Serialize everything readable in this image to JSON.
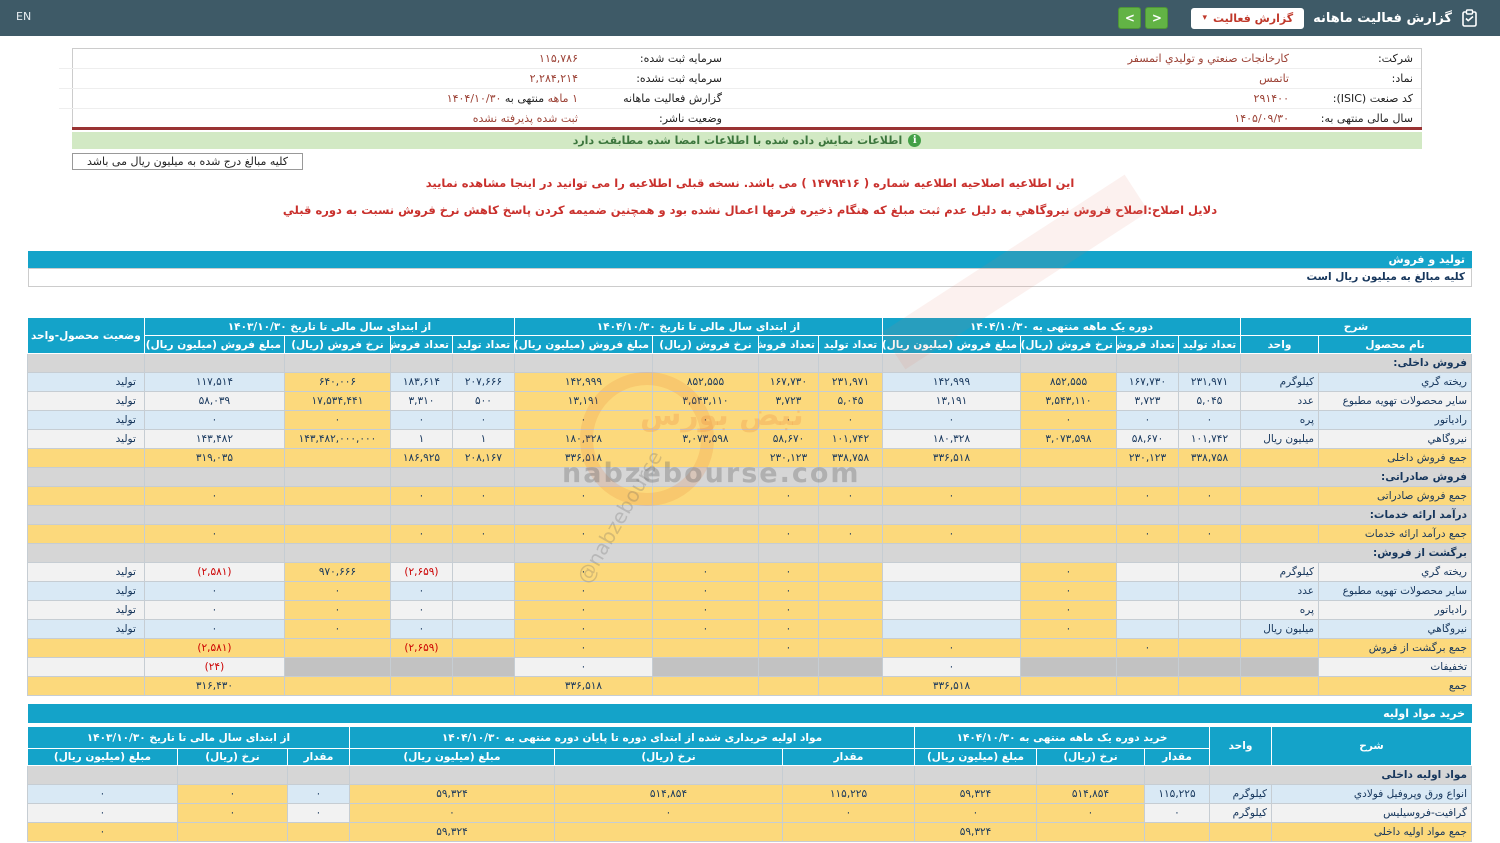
{
  "navbar": {
    "title": "گزارش فعالیت ماهانه",
    "dropdown_label": "گزارش فعالیت",
    "next_label": ">",
    "prev_label": "<",
    "lang": "EN",
    "bar_color": "#3e5a67",
    "button_green": "#62b345"
  },
  "info": {
    "rows": [
      [
        {
          "label": "شرکت:",
          "parts": [
            {
              "t": "کارخانجات صنعتي و توليدي اتمسفر",
              "c": "v"
            }
          ]
        },
        {
          "label": "سرمایه ثبت شده:",
          "parts": [
            {
              "t": "۱۱۵,۷۸۶",
              "c": "v"
            }
          ]
        }
      ],
      [
        {
          "label": "نماد:",
          "parts": [
            {
              "t": "تاتمس",
              "c": "v"
            }
          ]
        },
        {
          "label": "سرمایه ثبت نشده:",
          "parts": [
            {
              "t": "۲,۲۸۴,۲۱۴",
              "c": "v"
            }
          ]
        }
      ],
      [
        {
          "label": "کد صنعت (ISIC):",
          "parts": [
            {
              "t": "۲۹۱۴۰۰",
              "c": "v"
            }
          ]
        },
        {
          "label": "گزارش فعالیت ماهانه",
          "parts": [
            {
              "t": " ۱ ماهه",
              "c": "v"
            },
            {
              "t": "منتهی به",
              "c": "l"
            },
            {
              "t": "۱۴۰۴/۱۰/۳۰",
              "c": "v"
            }
          ]
        }
      ],
      [
        {
          "label": "سال مالی منتهی به:",
          "parts": [
            {
              "t": "۱۴۰۵/۰۹/۳۰",
              "c": "v"
            }
          ]
        },
        {
          "label": "وضعیت ناشر:",
          "parts": [
            {
              "t": "ثبت شده پذیرفته نشده",
              "c": "v"
            }
          ]
        }
      ]
    ]
  },
  "notice": "اطلاعات نمایش داده شده با اطلاعات امضا شده مطابقت دارد",
  "badge": "کلیه مبالغ درج شده به میلیون ریال می باشد",
  "amendment_line1": "این اطلاعیه اصلاحیه اطلاعیه شماره ( ۱۴۷۹۴۱۶ ) می باشد. نسخه قبلی اطلاعیه را می توانید در اینجا مشاهده نمایید",
  "amendment_line2": "دلایل اصلاح:اصلاح فروش نيروگاهي به دليل عدم ثبت مبلغ که هنگام ذخيره فرمها اعمال نشده بود و همچنين ضميمه کردن پاسخ کاهش نرخ فروش نسبت به دوره قبلي",
  "section1": {
    "title": "تولید و فروش",
    "subtitle": "کلیه مبالغ به میلیون ریال است"
  },
  "section2": {
    "title": "خرید مواد اولیه"
  },
  "watermark": {
    "main": "nabzebourse.com",
    "handle": "@nabzebourse",
    "fa": "نبض بورس"
  },
  "colors": {
    "teal": "#14a3c9",
    "highlight": "#fcd97c",
    "row_blue": "#d9e9f5",
    "negative": "#cc0000"
  },
  "tables": {
    "t1": {
      "has_status": true,
      "group_headers": [
        {
          "label": "شرح",
          "span": 2
        },
        {
          "label": "دوره یک ماهه منتهی به ۱۴۰۴/۱۰/۳۰",
          "span": 4
        },
        {
          "label": "از ابتدای سال مالی تا تاریخ ۱۴۰۴/۱۰/۳۰",
          "span": 4
        },
        {
          "label": "از ابتدای سال مالی تا تاریخ ۱۴۰۳/۱۰/۳۰",
          "span": 4
        },
        {
          "label": "وضعیت محصول-واحد",
          "span": 1,
          "rowspan": 2
        }
      ],
      "sub_headers": [
        "نام محصول",
        "واحد",
        "تعداد تولید",
        "تعداد فروش",
        "نرخ فروش (ریال)",
        "مبلغ فروش (میلیون ریال)",
        "تعداد تولید",
        "تعداد فروش",
        "نرخ فروش (ریال)",
        "مبلغ فروش (میلیون ریال)",
        "تعداد تولید",
        "تعداد فروش",
        "نرخ فروش (ریال)",
        "مبلغ فروش (میلیون ریال)"
      ],
      "rows": [
        {
          "type": "section",
          "label": "فروش داخلی:"
        },
        {
          "type": "data",
          "bg": "blue",
          "label": "ریخته گري",
          "unit": "کیلوگرم",
          "status": "تولید",
          "cells": [
            "۲۳۱,۹۷۱",
            "۱۶۷,۷۳۰",
            {
              "v": "۸۵۲,۵۵۵",
              "hl": true
            },
            "۱۴۲,۹۹۹",
            {
              "v": "۲۳۱,۹۷۱",
              "hl": true
            },
            {
              "v": "۱۶۷,۷۳۰",
              "hl": true
            },
            {
              "v": "۸۵۲,۵۵۵",
              "hl": true
            },
            {
              "v": "۱۴۲,۹۹۹",
              "hl": true
            },
            "۲۰۷,۶۶۶",
            "۱۸۳,۶۱۴",
            {
              "v": "۶۴۰,۰۰۶",
              "hl": true
            },
            "۱۱۷,۵۱۴"
          ]
        },
        {
          "type": "data",
          "bg": "light",
          "label": "سایر محصولات تهویه مطبوع",
          "unit": "عدد",
          "status": "تولید",
          "cells": [
            "۵,۰۴۵",
            "۳,۷۲۳",
            {
              "v": "۳,۵۴۳,۱۱۰",
              "hl": true
            },
            "۱۳,۱۹۱",
            {
              "v": "۵,۰۴۵",
              "hl": true
            },
            {
              "v": "۳,۷۲۳",
              "hl": true
            },
            {
              "v": "۳,۵۴۳,۱۱۰",
              "hl": true
            },
            {
              "v": "۱۳,۱۹۱",
              "hl": true
            },
            "۵۰۰",
            "۳,۳۱۰",
            {
              "v": "۱۷,۵۳۴,۴۴۱",
              "hl": true
            },
            "۵۸,۰۳۹"
          ]
        },
        {
          "type": "data",
          "bg": "blue",
          "label": "رادیاتور",
          "unit": "پره",
          "status": "تولید",
          "cells": [
            "۰",
            "۰",
            {
              "v": "۰",
              "hl": true
            },
            "۰",
            {
              "v": "۰",
              "hl": true
            },
            {
              "v": "۰",
              "hl": true
            },
            {
              "v": "۰",
              "hl": true
            },
            {
              "v": "۰",
              "hl": true
            },
            "۰",
            "۰",
            {
              "v": "۰",
              "hl": true
            },
            "۰"
          ]
        },
        {
          "type": "data",
          "bg": "light",
          "label": "نيروگاهي",
          "unit": "میلیون ریال",
          "status": "تولید",
          "cells": [
            "۱۰۱,۷۴۲",
            "۵۸,۶۷۰",
            {
              "v": "۳,۰۷۳,۵۹۸",
              "hl": true
            },
            "۱۸۰,۳۲۸",
            {
              "v": "۱۰۱,۷۴۲",
              "hl": true
            },
            {
              "v": "۵۸,۶۷۰",
              "hl": true
            },
            {
              "v": "۳,۰۷۳,۵۹۸",
              "hl": true
            },
            {
              "v": "۱۸۰,۳۲۸",
              "hl": true
            },
            "۱",
            "۱",
            {
              "v": "۱۴۳,۴۸۲,۰۰۰,۰۰۰",
              "hl": true
            },
            "۱۴۳,۴۸۲"
          ]
        },
        {
          "type": "data",
          "bg": "yellow",
          "label": "جمع فروش داخلی",
          "unit": "",
          "status": "",
          "cells": [
            "۳۳۸,۷۵۸",
            "۲۳۰,۱۲۳",
            "",
            "۳۳۶,۵۱۸",
            "۳۳۸,۷۵۸",
            "۲۳۰,۱۲۳",
            "",
            "۳۳۶,۵۱۸",
            "۲۰۸,۱۶۷",
            "۱۸۶,۹۲۵",
            "",
            "۳۱۹,۰۳۵"
          ]
        },
        {
          "type": "section",
          "label": "فروش صادراتی:"
        },
        {
          "type": "data",
          "bg": "yellow",
          "label": "جمع فروش صادراتی",
          "unit": "",
          "status": "",
          "cells": [
            "۰",
            "۰",
            "",
            "۰",
            "۰",
            "۰",
            "",
            "۰",
            "۰",
            "۰",
            "",
            "۰"
          ]
        },
        {
          "type": "section",
          "label": "درآمد ارائه خدمات:"
        },
        {
          "type": "data",
          "bg": "yellow",
          "label": "جمع درآمد ارائه خدمات",
          "unit": "",
          "status": "",
          "cells": [
            "۰",
            "۰",
            "",
            "۰",
            "۰",
            "۰",
            "",
            "۰",
            "۰",
            "۰",
            "",
            "۰"
          ]
        },
        {
          "type": "section",
          "label": "برگشت از فروش:"
        },
        {
          "type": "data",
          "bg": "light",
          "label": "ریخته گري",
          "unit": "کیلوگرم",
          "status": "تولید",
          "cells": [
            "",
            "",
            {
              "v": "۰",
              "hl": true
            },
            "",
            {
              "hl": true
            },
            {
              "v": "۰",
              "hl": true
            },
            {
              "v": "۰",
              "hl": true
            },
            {
              "v": "۰",
              "hl": true
            },
            "",
            {
              "v": "(۲,۶۵۹)",
              "red": true
            },
            {
              "v": "۹۷۰,۶۶۶",
              "hl": true
            },
            {
              "v": "(۲,۵۸۱)",
              "red": true
            }
          ]
        },
        {
          "type": "data",
          "bg": "blue",
          "label": "سایر محصولات تهویه مطبوع",
          "unit": "عدد",
          "status": "تولید",
          "cells": [
            "",
            "",
            {
              "v": "۰",
              "hl": true
            },
            "",
            {
              "hl": true
            },
            {
              "v": "۰",
              "hl": true
            },
            {
              "v": "۰",
              "hl": true
            },
            {
              "v": "۰",
              "hl": true
            },
            "",
            "۰",
            {
              "v": "۰",
              "hl": true
            },
            "۰"
          ]
        },
        {
          "type": "data",
          "bg": "light",
          "label": "رادیاتور",
          "unit": "پره",
          "status": "تولید",
          "cells": [
            "",
            "",
            {
              "v": "۰",
              "hl": true
            },
            "",
            {
              "hl": true
            },
            {
              "v": "۰",
              "hl": true
            },
            {
              "v": "۰",
              "hl": true
            },
            {
              "v": "۰",
              "hl": true
            },
            "",
            "۰",
            {
              "v": "۰",
              "hl": true
            },
            "۰"
          ]
        },
        {
          "type": "data",
          "bg": "blue",
          "label": "نيروگاهي",
          "unit": "میلیون ریال",
          "status": "تولید",
          "cells": [
            "",
            "",
            {
              "v": "۰",
              "hl": true
            },
            "",
            {
              "hl": true
            },
            {
              "v": "۰",
              "hl": true
            },
            {
              "v": "۰",
              "hl": true
            },
            {
              "v": "۰",
              "hl": true
            },
            "",
            "۰",
            {
              "v": "۰",
              "hl": true
            },
            "۰"
          ]
        },
        {
          "type": "data",
          "bg": "yellow",
          "label": "جمع برگشت از فروش",
          "unit": "",
          "status": "",
          "cells": [
            "",
            "۰",
            "",
            "۰",
            "",
            "۰",
            "",
            "۰",
            "",
            {
              "v": "(۲,۶۵۹)",
              "red": true
            },
            "",
            {
              "v": "(۲,۵۸۱)",
              "red": true
            }
          ]
        },
        {
          "type": "data",
          "bg": "light",
          "label": "تخفیفات",
          "unit": "",
          "status": "",
          "unit_dis": true,
          "cells": [
            {
              "dis": true
            },
            {
              "dis": true
            },
            {
              "dis": true
            },
            "۰",
            {
              "dis": true
            },
            {
              "dis": true
            },
            {
              "dis": true
            },
            "۰",
            {
              "dis": true
            },
            {
              "dis": true
            },
            {
              "dis": true
            },
            {
              "v": "(۲۴)",
              "red": true
            }
          ]
        },
        {
          "type": "data",
          "bg": "yellow",
          "label": "جمع",
          "unit": "",
          "status": "",
          "cells": [
            "",
            "",
            "",
            "۳۳۶,۵۱۸",
            "",
            "",
            "",
            "۳۳۶,۵۱۸",
            "",
            "",
            "",
            "۳۱۶,۴۳۰"
          ]
        }
      ]
    },
    "t2": {
      "has_status": false,
      "group_headers": [
        {
          "label": "شرح",
          "span": 1,
          "rowspan": 2
        },
        {
          "label": "واحد",
          "span": 1,
          "rowspan": 2
        },
        {
          "label": "خرید دوره یک ماهه منتهی به ۱۴۰۴/۱۰/۳۰",
          "span": 3
        },
        {
          "label": "مواد اولیه خریداری شده از ابتدای دوره تا پایان دوره منتهی به ۱۴۰۴/۱۰/۳۰",
          "span": 3
        },
        {
          "label": "از ابتدای سال مالی تا تاریخ ۱۴۰۳/۱۰/۳۰",
          "span": 3
        }
      ],
      "sub_headers": [
        "مقدار",
        "نرخ (ریال)",
        "مبلغ (میلیون ریال)",
        "مقدار",
        "نرخ (ریال)",
        "مبلغ (میلیون ریال)",
        "مقدار",
        "نرخ (ریال)",
        "مبلغ (میلیون ریال)"
      ],
      "rows": [
        {
          "type": "section",
          "label": "مواد اولیه داخلی"
        },
        {
          "type": "data",
          "bg": "blue",
          "label": "انواع ورق وپروفیل فولادي",
          "unit": "کیلوگرم",
          "cells": [
            "۱۱۵,۲۲۵",
            {
              "v": "۵۱۴,۸۵۴",
              "hl": true
            },
            {
              "v": "۵۹,۳۲۴",
              "hl": true
            },
            {
              "v": "۱۱۵,۲۲۵",
              "hl": true
            },
            {
              "v": "۵۱۴,۸۵۴",
              "hl": true
            },
            {
              "v": "۵۹,۳۲۴",
              "hl": true
            },
            "۰",
            {
              "v": "۰",
              "hl": true
            },
            "۰"
          ]
        },
        {
          "type": "data",
          "bg": "light",
          "label": "گرافیت-فروسیلیس",
          "unit": "کیلوگرم",
          "cells": [
            "۰",
            {
              "v": "۰",
              "hl": true
            },
            {
              "v": "۰",
              "hl": true
            },
            {
              "v": "۰",
              "hl": true
            },
            {
              "v": "۰",
              "hl": true
            },
            {
              "v": "۰",
              "hl": true
            },
            "۰",
            {
              "v": "۰",
              "hl": true
            },
            "۰"
          ]
        },
        {
          "type": "data",
          "bg": "yellow",
          "label": "جمع مواد اولیه داخلی",
          "unit": "",
          "cells": [
            "",
            "",
            "۵۹,۳۲۴",
            "",
            "",
            "۵۹,۳۲۴",
            "",
            "",
            "۰"
          ]
        }
      ]
    }
  }
}
